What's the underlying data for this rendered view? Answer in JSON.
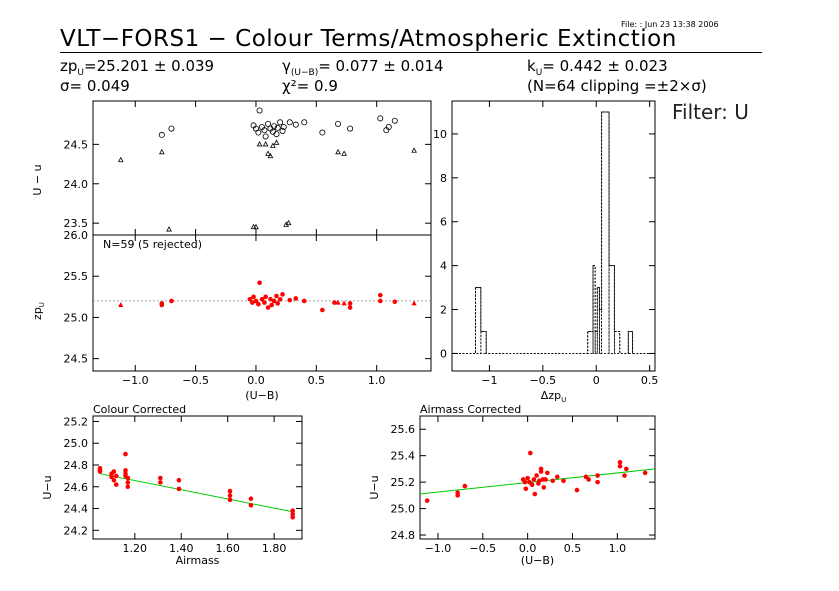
{
  "header": {
    "file_line": "File:  : Jun 23 13:38 2006",
    "title": "VLT−FORS1 − Colour Terms/Atmospheric Extinction",
    "stats": {
      "zp_label": "zp",
      "zp_sub": "U",
      "zp_value": "=25.201 ± 0.039",
      "sigma": "σ= 0.049",
      "gamma_label": "γ",
      "gamma_sub": "(U−B)",
      "gamma_value": "= 0.077 ± 0.014",
      "chi": "χ²= 0.9",
      "k_label": "k",
      "k_sub": "U",
      "k_value": "= 0.442 ± 0.023",
      "n_clip": "(N=64 clipping =±2×σ)"
    },
    "filter": "Filter: U"
  },
  "colors": {
    "axes": "#000000",
    "points": "#ff0000",
    "fit_line": "#00cc00",
    "ref_line": "#888888",
    "open_markers": "#000000"
  },
  "chart_data": [
    {
      "id": "top-scatter",
      "type": "scatter",
      "xlabel": "",
      "ylabel": "U − u",
      "xlim": [
        -1.35,
        1.45
      ],
      "ylim": [
        23.35,
        25.05
      ],
      "yticks": [
        23.5,
        24.0,
        24.5
      ],
      "ytick_labels": [
        "23.5",
        "24.0",
        "24.5"
      ],
      "xticks": [
        -1.0,
        -0.5,
        0.0,
        0.5,
        1.0
      ],
      "series": [
        {
          "marker": "circle",
          "points": [
            [
              -0.78,
              24.62
            ],
            [
              -0.7,
              24.7
            ],
            [
              -0.02,
              24.74
            ],
            [
              0.0,
              24.7
            ],
            [
              0.02,
              24.65
            ],
            [
              0.03,
              24.93
            ],
            [
              0.05,
              24.72
            ],
            [
              0.07,
              24.68
            ],
            [
              0.08,
              24.6
            ],
            [
              0.1,
              24.76
            ],
            [
              0.12,
              24.7
            ],
            [
              0.14,
              24.66
            ],
            [
              0.15,
              24.73
            ],
            [
              0.17,
              24.63
            ],
            [
              0.18,
              24.71
            ],
            [
              0.2,
              24.78
            ],
            [
              0.22,
              24.67
            ],
            [
              0.23,
              24.72
            ],
            [
              0.28,
              24.78
            ],
            [
              0.33,
              24.75
            ],
            [
              0.4,
              24.78
            ],
            [
              0.55,
              24.65
            ],
            [
              0.68,
              24.76
            ],
            [
              0.78,
              24.7
            ],
            [
              1.03,
              24.83
            ],
            [
              1.08,
              24.68
            ],
            [
              1.1,
              24.72
            ],
            [
              1.15,
              24.8
            ]
          ]
        },
        {
          "marker": "triangle",
          "points": [
            [
              -1.12,
              24.3
            ],
            [
              -0.78,
              24.4
            ],
            [
              -0.72,
              23.42
            ],
            [
              -0.02,
              23.45
            ],
            [
              0.0,
              23.45
            ],
            [
              0.03,
              24.5
            ],
            [
              0.08,
              24.5
            ],
            [
              0.1,
              24.38
            ],
            [
              0.12,
              24.35
            ],
            [
              0.14,
              24.48
            ],
            [
              0.17,
              24.52
            ],
            [
              0.25,
              23.48
            ],
            [
              0.27,
              23.5
            ],
            [
              0.68,
              24.4
            ],
            [
              0.73,
              24.38
            ],
            [
              1.31,
              24.42
            ]
          ]
        }
      ]
    },
    {
      "id": "zp-scatter",
      "type": "scatter",
      "annotation": "N=59 (5 rejected)",
      "xlabel": "(U−B)",
      "ylabel": "zp",
      "ylabel_sub": "U",
      "xlim": [
        -1.35,
        1.45
      ],
      "ylim": [
        24.35,
        26.0
      ],
      "yticks": [
        24.5,
        25.0,
        25.5,
        26.0
      ],
      "ytick_labels": [
        "24.5",
        "25.0",
        "25.5",
        "26.0"
      ],
      "xticks": [
        -1.0,
        -0.5,
        0.0,
        0.5,
        1.0
      ],
      "xtick_labels": [
        "−1.0",
        "−0.5",
        "0.0",
        "0.5",
        "1.0"
      ],
      "ref_y": 25.201,
      "series": [
        {
          "marker": "dot",
          "points": [
            [
              -0.78,
              25.15
            ],
            [
              -0.78,
              25.17
            ],
            [
              -0.7,
              25.2
            ],
            [
              -0.05,
              25.22
            ],
            [
              -0.03,
              25.18
            ],
            [
              -0.02,
              25.25
            ],
            [
              0.0,
              25.2
            ],
            [
              0.02,
              25.16
            ],
            [
              0.03,
              25.42
            ],
            [
              0.05,
              25.22
            ],
            [
              0.07,
              25.18
            ],
            [
              0.08,
              25.25
            ],
            [
              0.1,
              25.12
            ],
            [
              0.12,
              25.22
            ],
            [
              0.13,
              25.15
            ],
            [
              0.15,
              25.2
            ],
            [
              0.17,
              25.26
            ],
            [
              0.18,
              25.17
            ],
            [
              0.2,
              25.22
            ],
            [
              0.22,
              25.28
            ],
            [
              0.28,
              25.21
            ],
            [
              0.33,
              25.23
            ],
            [
              0.4,
              25.2
            ],
            [
              0.55,
              25.09
            ],
            [
              0.65,
              25.18
            ],
            [
              0.78,
              25.12
            ],
            [
              0.78,
              25.17
            ],
            [
              1.03,
              25.27
            ],
            [
              1.03,
              25.2
            ],
            [
              1.15,
              25.19
            ]
          ]
        },
        {
          "marker": "triangle-filled",
          "points": [
            [
              -1.12,
              25.15
            ],
            [
              0.68,
              25.18
            ],
            [
              0.73,
              25.17
            ],
            [
              1.31,
              25.17
            ]
          ]
        }
      ]
    },
    {
      "id": "histogram",
      "type": "bar",
      "xlabel": "Δzp",
      "xlabel_sub": "U",
      "xlim": [
        -1.35,
        0.55
      ],
      "ylim": [
        -0.8,
        11.5
      ],
      "xticks": [
        -1.0,
        -0.5,
        0.0,
        0.5
      ],
      "xtick_labels": [
        "−1",
        "−0.5",
        "0",
        "0.5"
      ],
      "yticks": [
        0,
        2,
        4,
        6,
        8,
        10
      ],
      "ytick_labels": [
        "0",
        "2",
        "4",
        "6",
        "8",
        "10"
      ],
      "bins": [
        [
          -1.35,
          0
        ],
        [
          -1.13,
          3
        ],
        [
          -1.08,
          1
        ],
        [
          -1.03,
          0
        ],
        [
          -0.08,
          1
        ],
        [
          -0.03,
          4
        ],
        [
          -0.01,
          1
        ],
        [
          0.01,
          3
        ],
        [
          0.03,
          2
        ],
        [
          0.05,
          11
        ],
        [
          0.12,
          4
        ],
        [
          0.17,
          1
        ],
        [
          0.22,
          0
        ],
        [
          0.3,
          1
        ],
        [
          0.34,
          0
        ],
        [
          0.55,
          0
        ]
      ]
    },
    {
      "id": "colour-corrected",
      "type": "scatter",
      "title": "Colour Corrected",
      "xlabel": "Airmass",
      "ylabel": "U−u",
      "xlim": [
        1.02,
        1.92
      ],
      "ylim": [
        24.12,
        25.25
      ],
      "xticks": [
        1.2,
        1.4,
        1.6,
        1.8
      ],
      "xtick_labels": [
        "1.20",
        "1.40",
        "1.60",
        "1.80"
      ],
      "yticks": [
        24.2,
        24.4,
        24.6,
        24.8,
        25.0,
        25.2
      ],
      "ytick_labels": [
        "24.2",
        "24.4",
        "24.6",
        "24.8",
        "25.0",
        "25.2"
      ],
      "fit": [
        [
          1.05,
          24.72
        ],
        [
          1.88,
          24.37
        ]
      ],
      "points": [
        [
          1.05,
          24.75
        ],
        [
          1.05,
          24.77
        ],
        [
          1.05,
          24.74
        ],
        [
          1.1,
          24.72
        ],
        [
          1.1,
          24.69
        ],
        [
          1.11,
          24.74
        ],
        [
          1.11,
          24.66
        ],
        [
          1.12,
          24.7
        ],
        [
          1.12,
          24.62
        ],
        [
          1.16,
          24.9
        ],
        [
          1.16,
          24.75
        ],
        [
          1.16,
          24.72
        ],
        [
          1.16,
          24.7
        ],
        [
          1.17,
          24.64
        ],
        [
          1.17,
          24.6
        ],
        [
          1.17,
          24.68
        ],
        [
          1.31,
          24.68
        ],
        [
          1.31,
          24.64
        ],
        [
          1.39,
          24.66
        ],
        [
          1.39,
          24.58
        ],
        [
          1.61,
          24.56
        ],
        [
          1.61,
          24.52
        ],
        [
          1.61,
          24.48
        ],
        [
          1.7,
          24.49
        ],
        [
          1.7,
          24.43
        ],
        [
          1.88,
          24.38
        ],
        [
          1.88,
          24.35
        ],
        [
          1.88,
          24.32
        ]
      ]
    },
    {
      "id": "airmass-corrected",
      "type": "scatter",
      "title": "Airmass Corrected",
      "xlabel": "(U−B)",
      "ylabel": "U−u",
      "xlim": [
        -1.2,
        1.42
      ],
      "ylim": [
        24.77,
        25.7
      ],
      "xticks": [
        -1.0,
        -0.5,
        0.0,
        0.5,
        1.0
      ],
      "xtick_labels": [
        "−1.0",
        "−0.5",
        "0.0",
        "0.5",
        "1.0"
      ],
      "yticks": [
        24.8,
        25.0,
        25.2,
        25.4,
        25.6
      ],
      "ytick_labels": [
        "24.8",
        "25.0",
        "25.2",
        "25.4",
        "25.6"
      ],
      "fit": [
        [
          -1.2,
          25.11
        ],
        [
          1.42,
          25.3
        ]
      ],
      "points": [
        [
          -1.12,
          25.06
        ],
        [
          -0.78,
          25.1
        ],
        [
          -0.78,
          25.12
        ],
        [
          -0.7,
          25.17
        ],
        [
          -0.05,
          25.22
        ],
        [
          -0.03,
          25.2
        ],
        [
          -0.02,
          25.15
        ],
        [
          0.0,
          25.23
        ],
        [
          0.02,
          25.2
        ],
        [
          0.03,
          25.42
        ],
        [
          0.05,
          25.18
        ],
        [
          0.07,
          25.22
        ],
        [
          0.08,
          25.11
        ],
        [
          0.1,
          25.25
        ],
        [
          0.12,
          25.19
        ],
        [
          0.13,
          25.21
        ],
        [
          0.15,
          25.3
        ],
        [
          0.15,
          25.28
        ],
        [
          0.17,
          25.22
        ],
        [
          0.18,
          25.16
        ],
        [
          0.2,
          25.22
        ],
        [
          0.22,
          25.27
        ],
        [
          0.28,
          25.21
        ],
        [
          0.33,
          25.24
        ],
        [
          0.4,
          25.21
        ],
        [
          0.55,
          25.14
        ],
        [
          0.65,
          25.24
        ],
        [
          0.68,
          25.22
        ],
        [
          0.78,
          25.2
        ],
        [
          0.78,
          25.25
        ],
        [
          1.03,
          25.32
        ],
        [
          1.03,
          25.35
        ],
        [
          1.08,
          25.25
        ],
        [
          1.1,
          25.3
        ],
        [
          1.31,
          25.27
        ]
      ]
    }
  ]
}
